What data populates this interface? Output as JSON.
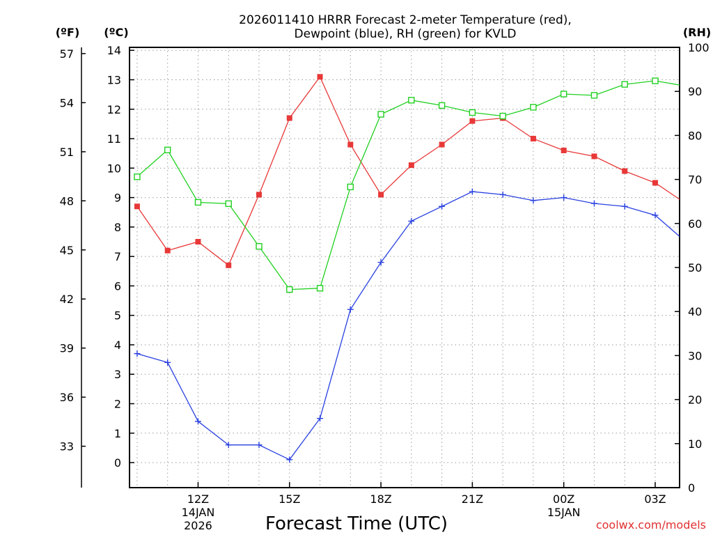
{
  "chart_data": {
    "type": "line",
    "title_line1": "2026011410 HRRR Forecast 2-meter Temperature (red),",
    "title_line2": "Dewpoint (blue), RH (green) for KVLD",
    "xlabel": "Forecast Time (UTC)",
    "credit": "coolwx.com/models",
    "units": {
      "fahrenheit": "(ºF)",
      "celsius": "(ºC)",
      "rh": "(RH)"
    },
    "x_hours": [
      10,
      11,
      12,
      13,
      14,
      15,
      16,
      17,
      18,
      19,
      20,
      21,
      22,
      23,
      24,
      25,
      26,
      27,
      28
    ],
    "xlim": [
      9.75,
      27.8
    ],
    "x_ticks": [
      {
        "hour": 12,
        "label": "12Z",
        "date1": "14JAN",
        "date2": "2026"
      },
      {
        "hour": 15,
        "label": "15Z",
        "date1": "",
        "date2": ""
      },
      {
        "hour": 18,
        "label": "18Z",
        "date1": "",
        "date2": ""
      },
      {
        "hour": 21,
        "label": "21Z",
        "date1": "",
        "date2": ""
      },
      {
        "hour": 24,
        "label": "00Z",
        "date1": "15JAN",
        "date2": ""
      },
      {
        "hour": 27,
        "label": "03Z",
        "date1": "",
        "date2": ""
      }
    ],
    "ylim_c": [
      -0.85,
      14.1
    ],
    "ylim_rh": [
      0,
      100
    ],
    "ytick_c": [
      "0",
      "1",
      "2",
      "3",
      "4",
      "5",
      "6",
      "7",
      "8",
      "9",
      "10",
      "11",
      "12",
      "13",
      "14"
    ],
    "ytick_f": [
      "33",
      "36",
      "39",
      "42",
      "45",
      "48",
      "51",
      "54",
      "57"
    ],
    "ytick_rh": [
      "0",
      "10",
      "20",
      "30",
      "40",
      "50",
      "60",
      "70",
      "80",
      "90",
      "100"
    ],
    "series": [
      {
        "name": "Temperature",
        "color": "#e83838",
        "axis": "celsius",
        "marker": "filled-square",
        "values": [
          8.7,
          7.2,
          7.5,
          6.7,
          9.1,
          11.7,
          13.1,
          10.8,
          9.1,
          10.1,
          10.8,
          11.6,
          11.7,
          11.0,
          10.6,
          10.4,
          9.9,
          9.5,
          8.8
        ]
      },
      {
        "name": "Dewpoint",
        "color": "#2840e0",
        "axis": "celsius",
        "marker": "plus",
        "values": [
          3.7,
          3.4,
          1.4,
          0.6,
          0.6,
          0.1,
          1.5,
          5.2,
          6.8,
          8.2,
          8.7,
          9.2,
          9.1,
          8.9,
          9.0,
          8.8,
          8.7,
          8.4,
          7.5
        ]
      },
      {
        "name": "RH",
        "color": "#20d020",
        "axis": "rh",
        "marker": "open-square",
        "values": [
          70.6,
          76.7,
          64.8,
          64.5,
          54.8,
          45.0,
          45.3,
          68.3,
          84.8,
          88.0,
          86.8,
          85.2,
          84.4,
          86.4,
          89.4,
          89.1,
          91.6,
          92.4,
          91.2
        ]
      }
    ]
  }
}
